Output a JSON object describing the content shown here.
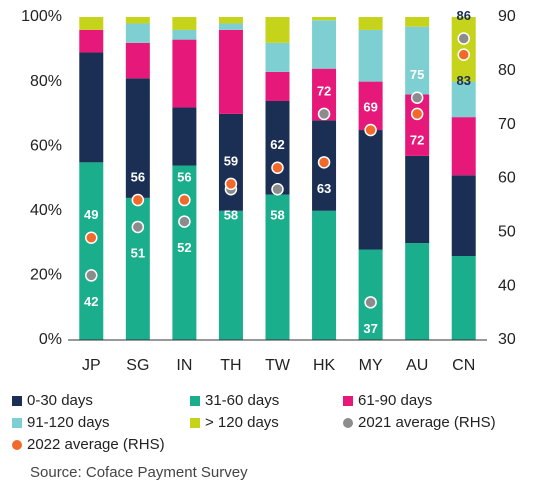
{
  "chart_data": {
    "type": "bar",
    "stacked": true,
    "categories": [
      "JP",
      "SG",
      "IN",
      "TH",
      "TW",
      "HK",
      "MY",
      "AU",
      "CN"
    ],
    "series": [
      {
        "name": "31-60 days",
        "color": "#1aae8c",
        "values": [
          55,
          44,
          54,
          40,
          45,
          40,
          28,
          30,
          26
        ]
      },
      {
        "name": "0-30 days",
        "color": "#1b2f55",
        "values": [
          34,
          37,
          18,
          30,
          29,
          28,
          37,
          27,
          25
        ]
      },
      {
        "name": "61-90 days",
        "color": "#e6197a",
        "values": [
          7,
          11,
          21,
          26,
          9,
          16,
          15,
          19,
          18
        ]
      },
      {
        "name": "91-120 days",
        "color": "#7ecfd2",
        "values": [
          0,
          6,
          3,
          2,
          9,
          15,
          16,
          21,
          11
        ]
      },
      {
        "name": "> 120 days",
        "color": "#c5d31a",
        "values": [
          4,
          2,
          4,
          2,
          8,
          1,
          4,
          3,
          20
        ]
      },
      {
        "name": "2021 average (RHS)",
        "type": "scatter",
        "axis": "y2",
        "color": "#8c8c8c",
        "values": [
          42,
          51,
          52,
          58,
          58,
          72,
          37,
          75,
          86
        ]
      },
      {
        "name": "2022 average (RHS)",
        "type": "scatter",
        "axis": "y2",
        "color": "#f26a2a",
        "values": [
          49,
          56,
          56,
          59,
          62,
          63,
          69,
          72,
          83
        ]
      }
    ],
    "ylim": [
      0,
      100
    ],
    "yticks": [
      {
        "value": 0,
        "label": "0%"
      },
      {
        "value": 20,
        "label": "20%"
      },
      {
        "value": 40,
        "label": "40%"
      },
      {
        "value": 60,
        "label": "60%"
      },
      {
        "value": 80,
        "label": "80%"
      },
      {
        "value": 100,
        "label": "100%"
      }
    ],
    "y2lim": [
      30,
      90
    ],
    "y2ticks": [
      30,
      40,
      50,
      60,
      70,
      80,
      90
    ],
    "legend": "bottom",
    "source": "Source: Coface Payment Survey"
  }
}
